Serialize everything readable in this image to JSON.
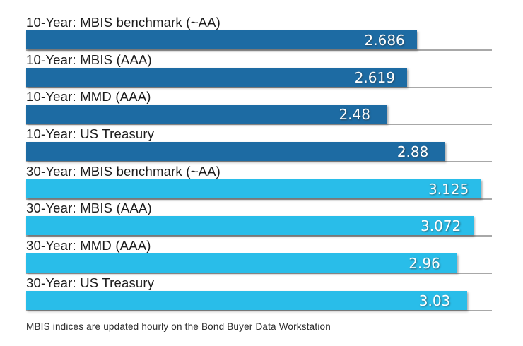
{
  "chart_data": {
    "type": "bar",
    "orientation": "horizontal",
    "title": "",
    "xlabel": "",
    "ylabel": "",
    "xlim": [
      0,
      3.2
    ],
    "grid": false,
    "legend": false,
    "colors": {
      "ten_year": "#1d6ba3",
      "thirty_year": "#29bde9"
    },
    "baseline_color": "#a8a8a8",
    "value_text_color": "#ffffff",
    "label_text_color": "#1c1c1c",
    "categories": [
      "10-Year: MBIS benchmark (~AA)",
      "10-Year: MBIS (AAA)",
      "10-Year: MMD (AAA)",
      "10-Year: US Treasury",
      "30-Year: MBIS benchmark (~AA)",
      "30-Year: MBIS (AAA)",
      "30-Year: MMD (AAA)",
      "30-Year: US Treasury"
    ],
    "values": [
      2.686,
      2.619,
      2.48,
      2.88,
      3.125,
      3.072,
      2.96,
      3.03
    ],
    "rows": [
      {
        "label": "10-Year: MBIS benchmark (~AA)",
        "value": 2.686,
        "display": "2.686",
        "group": "ten_year"
      },
      {
        "label": "10-Year: MBIS (AAA)",
        "value": 2.619,
        "display": "2.619",
        "group": "ten_year"
      },
      {
        "label": "10-Year: MMD (AAA)",
        "value": 2.48,
        "display": "2.48",
        "group": "ten_year"
      },
      {
        "label": "10-Year: US Treasury",
        "value": 2.88,
        "display": "2.88",
        "group": "ten_year"
      },
      {
        "label": "30-Year: MBIS benchmark (~AA)",
        "value": 3.125,
        "display": "3.125",
        "group": "thirty_year"
      },
      {
        "label": "30-Year: MBIS (AAA)",
        "value": 3.072,
        "display": "3.072",
        "group": "thirty_year"
      },
      {
        "label": "30-Year: MMD (AAA)",
        "value": 2.96,
        "display": "2.96",
        "group": "thirty_year"
      },
      {
        "label": "30-Year: US Treasury",
        "value": 3.03,
        "display": "3.03",
        "group": "thirty_year"
      }
    ],
    "footnote": "MBIS indices are updated hourly on the Bond Buyer Data Workstation"
  }
}
